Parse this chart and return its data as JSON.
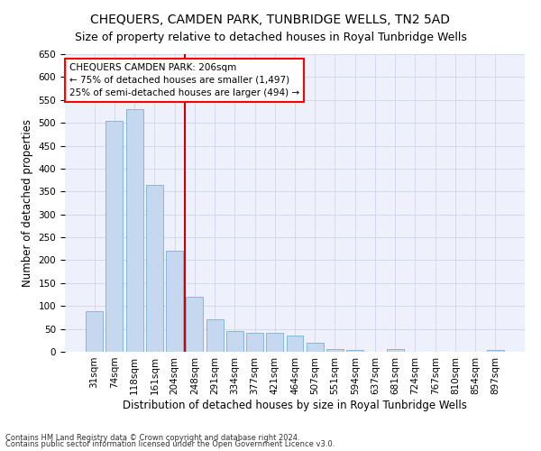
{
  "title": "CHEQUERS, CAMDEN PARK, TUNBRIDGE WELLS, TN2 5AD",
  "subtitle": "Size of property relative to detached houses in Royal Tunbridge Wells",
  "xlabel": "Distribution of detached houses by size in Royal Tunbridge Wells",
  "ylabel": "Number of detached properties",
  "footnote1": "Contains HM Land Registry data © Crown copyright and database right 2024.",
  "footnote2": "Contains public sector information licensed under the Open Government Licence v3.0.",
  "annotation_title": "CHEQUERS CAMDEN PARK: 206sqm",
  "annotation_line2": "← 75% of detached houses are smaller (1,497)",
  "annotation_line3": "25% of semi-detached houses are larger (494) →",
  "bar_color": "#c5d8f0",
  "bar_edge_color": "#7aafd4",
  "vline_color": "#cc0000",
  "vline_x": 4.5,
  "categories": [
    "31sqm",
    "74sqm",
    "118sqm",
    "161sqm",
    "204sqm",
    "248sqm",
    "291sqm",
    "334sqm",
    "377sqm",
    "421sqm",
    "464sqm",
    "507sqm",
    "551sqm",
    "594sqm",
    "637sqm",
    "681sqm",
    "724sqm",
    "767sqm",
    "810sqm",
    "854sqm",
    "897sqm"
  ],
  "values": [
    88,
    505,
    530,
    365,
    220,
    120,
    70,
    45,
    42,
    42,
    35,
    20,
    6,
    4,
    0,
    5,
    0,
    0,
    0,
    0,
    3
  ],
  "ylim": [
    0,
    650
  ],
  "yticks": [
    0,
    50,
    100,
    150,
    200,
    250,
    300,
    350,
    400,
    450,
    500,
    550,
    600,
    650
  ],
  "background_color": "#eef1fb",
  "grid_color": "#c8d0e8",
  "title_fontsize": 10,
  "subtitle_fontsize": 9,
  "axis_label_fontsize": 8.5,
  "tick_fontsize": 7.5,
  "footnote_fontsize": 6
}
